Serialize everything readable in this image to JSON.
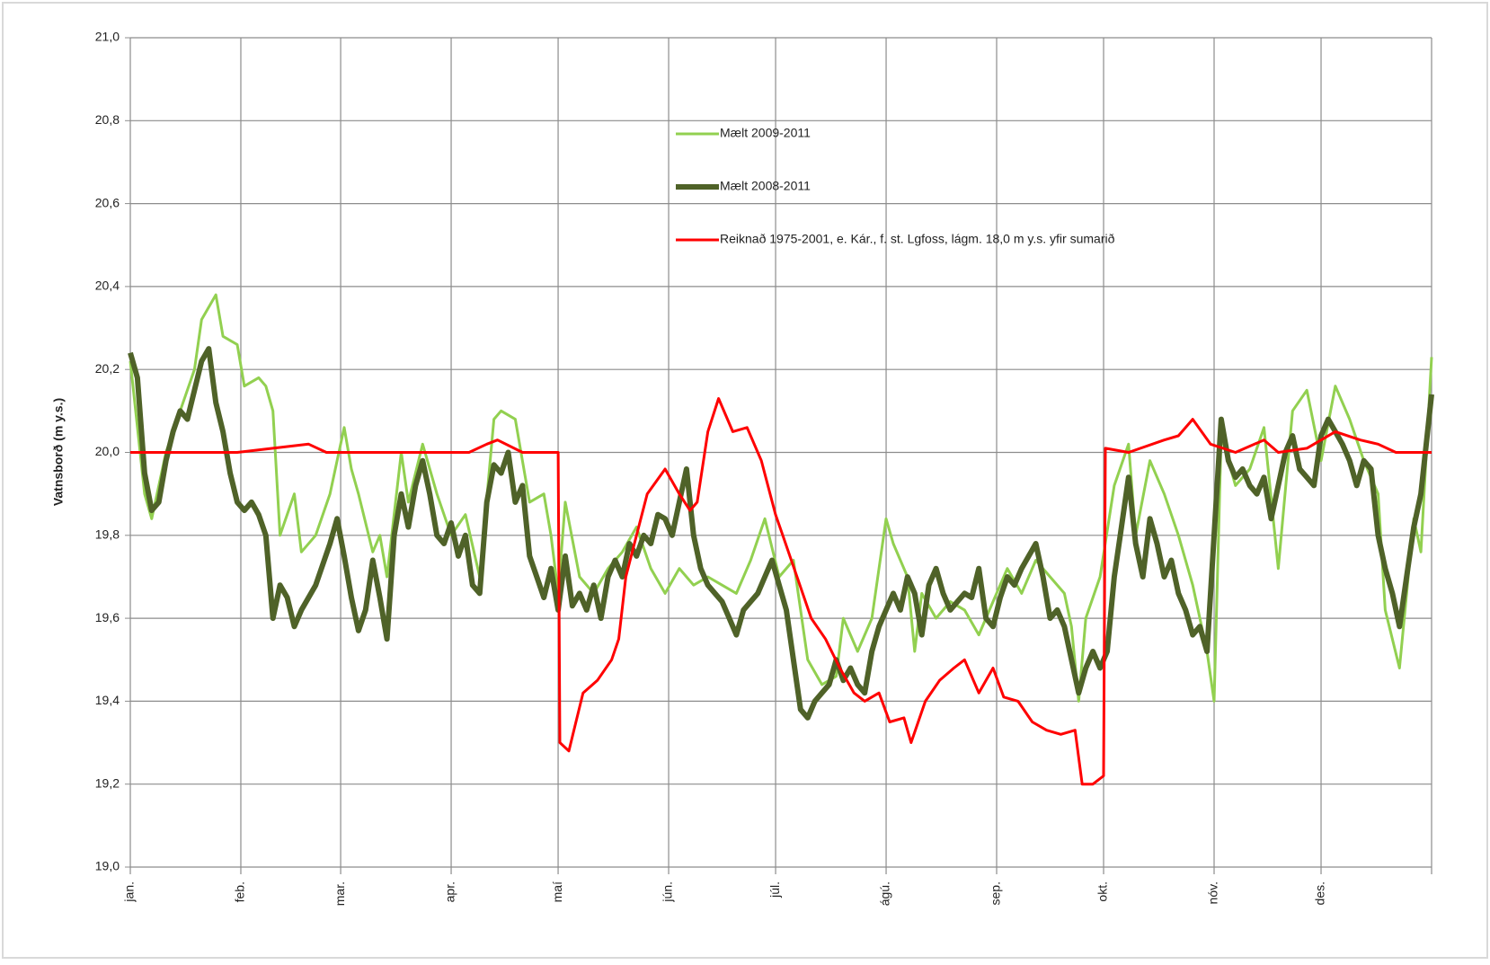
{
  "chart_data": {
    "type": "line",
    "y_label": "Vatnsborð (m y.s.)",
    "xlim": [
      0,
      365
    ],
    "xticks": [
      {
        "value": 0,
        "label": "jan."
      },
      {
        "value": 31,
        "label": "feb."
      },
      {
        "value": 59,
        "label": "mar."
      },
      {
        "value": 90,
        "label": "apr."
      },
      {
        "value": 120,
        "label": "maí"
      },
      {
        "value": 151,
        "label": "jún."
      },
      {
        "value": 181,
        "label": "júl."
      },
      {
        "value": 212,
        "label": "ágú."
      },
      {
        "value": 243,
        "label": "sep."
      },
      {
        "value": 273,
        "label": "okt."
      },
      {
        "value": 304,
        "label": "nóv."
      },
      {
        "value": 334,
        "label": "des."
      }
    ],
    "ylim": [
      19,
      21
    ],
    "yticks": [
      {
        "value": 19,
        "label": "19,0"
      },
      {
        "value": 19.2,
        "label": "19,2"
      },
      {
        "value": 19.4,
        "label": "19,4"
      },
      {
        "value": 19.6,
        "label": "19,6"
      },
      {
        "value": 19.8,
        "label": "19,8"
      },
      {
        "value": 20,
        "label": "20,0"
      },
      {
        "value": 20.2,
        "label": "20,2"
      },
      {
        "value": 20.4,
        "label": "20,4"
      },
      {
        "value": 20.6,
        "label": "20,6"
      },
      {
        "value": 20.8,
        "label": "20,8"
      },
      {
        "value": 21,
        "label": "21,0"
      }
    ],
    "grid": true,
    "series": [
      {
        "name": "Mælt 2009-2011",
        "color": "#92d050",
        "width": 3,
        "x": [
          0,
          4,
          6,
          10,
          14,
          18,
          20,
          24,
          26,
          30,
          32,
          36,
          38,
          40,
          42,
          46,
          48,
          52,
          56,
          60,
          62,
          64,
          68,
          70,
          72,
          76,
          78,
          82,
          86,
          90,
          94,
          98,
          102,
          104,
          108,
          112,
          116,
          118,
          120,
          122,
          126,
          130,
          134,
          138,
          142,
          146,
          150,
          154,
          158,
          162,
          166,
          170,
          174,
          178,
          182,
          186,
          190,
          194,
          198,
          200,
          204,
          208,
          212,
          214,
          218,
          220,
          222,
          226,
          230,
          234,
          238,
          242,
          246,
          250,
          254,
          258,
          262,
          264,
          266,
          268,
          272,
          276,
          280,
          282,
          286,
          290,
          294,
          298,
          302,
          304,
          306,
          310,
          314,
          318,
          322,
          326,
          330,
          334,
          338,
          342,
          346,
          350,
          352,
          356,
          360,
          362,
          365
        ],
        "values": [
          20.22,
          19.9,
          19.84,
          20.0,
          20.1,
          20.2,
          20.32,
          20.38,
          20.28,
          20.26,
          20.16,
          20.18,
          20.16,
          20.1,
          19.8,
          19.9,
          19.76,
          19.8,
          19.9,
          20.06,
          19.96,
          19.9,
          19.76,
          19.8,
          19.7,
          20.0,
          19.88,
          20.02,
          19.9,
          19.8,
          19.85,
          19.7,
          20.08,
          20.1,
          20.08,
          19.88,
          19.9,
          19.8,
          19.66,
          19.88,
          19.7,
          19.66,
          19.72,
          19.76,
          19.82,
          19.72,
          19.66,
          19.72,
          19.68,
          19.7,
          19.68,
          19.66,
          19.74,
          19.84,
          19.7,
          19.74,
          19.5,
          19.44,
          19.46,
          19.6,
          19.52,
          19.6,
          19.84,
          19.78,
          19.7,
          19.52,
          19.66,
          19.6,
          19.64,
          19.62,
          19.56,
          19.64,
          19.72,
          19.66,
          19.74,
          19.7,
          19.66,
          19.58,
          19.4,
          19.6,
          19.7,
          19.92,
          20.02,
          19.8,
          19.98,
          19.9,
          19.8,
          19.68,
          19.52,
          19.4,
          20.04,
          19.92,
          19.96,
          20.06,
          19.72,
          20.1,
          20.15,
          19.98,
          20.16,
          20.08,
          19.98,
          19.9,
          19.62,
          19.48,
          19.84,
          19.76,
          20.23
        ]
      },
      {
        "name": "Mælt 2008-2011",
        "color": "#4f6228",
        "width": 6,
        "x": [
          0,
          2,
          4,
          6,
          8,
          10,
          12,
          14,
          16,
          18,
          20,
          22,
          24,
          26,
          28,
          30,
          32,
          34,
          36,
          38,
          40,
          42,
          44,
          46,
          48,
          52,
          56,
          58,
          60,
          62,
          64,
          66,
          68,
          70,
          72,
          74,
          76,
          78,
          80,
          82,
          84,
          86,
          88,
          90,
          92,
          94,
          96,
          98,
          100,
          102,
          104,
          106,
          108,
          110,
          112,
          114,
          116,
          118,
          120,
          122,
          124,
          126,
          128,
          130,
          132,
          134,
          136,
          138,
          140,
          142,
          144,
          146,
          148,
          150,
          152,
          154,
          156,
          158,
          160,
          162,
          164,
          166,
          168,
          170,
          172,
          174,
          176,
          178,
          180,
          182,
          184,
          186,
          188,
          190,
          192,
          194,
          196,
          198,
          200,
          202,
          204,
          206,
          208,
          210,
          212,
          214,
          216,
          218,
          220,
          222,
          224,
          226,
          228,
          230,
          232,
          234,
          236,
          238,
          240,
          242,
          244,
          246,
          248,
          250,
          252,
          254,
          256,
          258,
          260,
          262,
          264,
          266,
          268,
          270,
          272,
          274,
          276,
          278,
          280,
          282,
          284,
          286,
          288,
          290,
          292,
          294,
          296,
          298,
          300,
          302,
          304,
          306,
          308,
          310,
          312,
          314,
          316,
          318,
          320,
          322,
          324,
          326,
          328,
          330,
          332,
          334,
          336,
          338,
          340,
          342,
          344,
          346,
          348,
          350,
          352,
          354,
          356,
          358,
          360,
          362,
          365
        ],
        "values": [
          20.24,
          20.18,
          19.95,
          19.86,
          19.88,
          19.98,
          20.05,
          20.1,
          20.08,
          20.15,
          20.22,
          20.25,
          20.12,
          20.05,
          19.95,
          19.88,
          19.86,
          19.88,
          19.85,
          19.8,
          19.6,
          19.68,
          19.65,
          19.58,
          19.62,
          19.68,
          19.78,
          19.84,
          19.75,
          19.65,
          19.57,
          19.62,
          19.74,
          19.65,
          19.55,
          19.8,
          19.9,
          19.82,
          19.92,
          19.98,
          19.9,
          19.8,
          19.78,
          19.83,
          19.75,
          19.8,
          19.68,
          19.66,
          19.88,
          19.97,
          19.95,
          20.0,
          19.88,
          19.92,
          19.75,
          19.7,
          19.65,
          19.72,
          19.62,
          19.75,
          19.63,
          19.66,
          19.62,
          19.68,
          19.6,
          19.7,
          19.74,
          19.7,
          19.78,
          19.75,
          19.8,
          19.78,
          19.85,
          19.84,
          19.8,
          19.88,
          19.96,
          19.8,
          19.72,
          19.68,
          19.66,
          19.64,
          19.6,
          19.56,
          19.62,
          19.64,
          19.66,
          19.7,
          19.74,
          19.68,
          19.62,
          19.5,
          19.38,
          19.36,
          19.4,
          19.42,
          19.44,
          19.5,
          19.45,
          19.48,
          19.44,
          19.42,
          19.52,
          19.58,
          19.62,
          19.66,
          19.62,
          19.7,
          19.66,
          19.56,
          19.68,
          19.72,
          19.66,
          19.62,
          19.64,
          19.66,
          19.65,
          19.72,
          19.6,
          19.58,
          19.65,
          19.7,
          19.68,
          19.72,
          19.75,
          19.78,
          19.7,
          19.6,
          19.62,
          19.58,
          19.5,
          19.42,
          19.48,
          19.52,
          19.48,
          19.52,
          19.7,
          19.82,
          19.94,
          19.78,
          19.7,
          19.84,
          19.78,
          19.7,
          19.74,
          19.66,
          19.62,
          19.56,
          19.58,
          19.52,
          19.8,
          20.08,
          19.98,
          19.94,
          19.96,
          19.92,
          19.9,
          19.94,
          19.84,
          19.92,
          20.0,
          20.04,
          19.96,
          19.94,
          19.92,
          20.04,
          20.08,
          20.05,
          20.02,
          19.98,
          19.92,
          19.98,
          19.96,
          19.8,
          19.72,
          19.66,
          19.58,
          19.7,
          19.82,
          19.9,
          20.14
        ]
      },
      {
        "name": "Reiknað 1975-2001, e. Kár., f. st. Lgfoss, lágm. 18,0 m y.s. yfir sumarið",
        "color": "#ff0000",
        "width": 3,
        "x": [
          0,
          20,
          30,
          40,
          50,
          55,
          95,
          100,
          103,
          110,
          120,
          120.5,
          123,
          127,
          131,
          135,
          137,
          139,
          142,
          145,
          150,
          154,
          157,
          159,
          162,
          165,
          169,
          173,
          177,
          181,
          183,
          187,
          191,
          195,
          199,
          203,
          206,
          210,
          213,
          217,
          219,
          223,
          227,
          231,
          234,
          238,
          242,
          245,
          249,
          253,
          257,
          261,
          265,
          267,
          270,
          273,
          273.5,
          280,
          290,
          294,
          298,
          303,
          310,
          318,
          322,
          330,
          338,
          345,
          350,
          355,
          365
        ],
        "values": [
          20.0,
          20.0,
          20.0,
          20.01,
          20.02,
          20.0,
          20.0,
          20.02,
          20.03,
          20.0,
          20.0,
          19.3,
          19.28,
          19.42,
          19.45,
          19.5,
          19.55,
          19.7,
          19.8,
          19.9,
          19.96,
          19.9,
          19.86,
          19.88,
          20.05,
          20.13,
          20.05,
          20.06,
          19.98,
          19.85,
          19.8,
          19.7,
          19.6,
          19.55,
          19.48,
          19.42,
          19.4,
          19.42,
          19.35,
          19.36,
          19.3,
          19.4,
          19.45,
          19.48,
          19.5,
          19.42,
          19.48,
          19.41,
          19.4,
          19.35,
          19.33,
          19.32,
          19.33,
          19.2,
          19.2,
          19.22,
          20.01,
          20.0,
          20.03,
          20.04,
          20.08,
          20.02,
          20.0,
          20.03,
          20.0,
          20.01,
          20.05,
          20.03,
          20.02,
          20.0,
          20.0
        ]
      }
    ]
  }
}
